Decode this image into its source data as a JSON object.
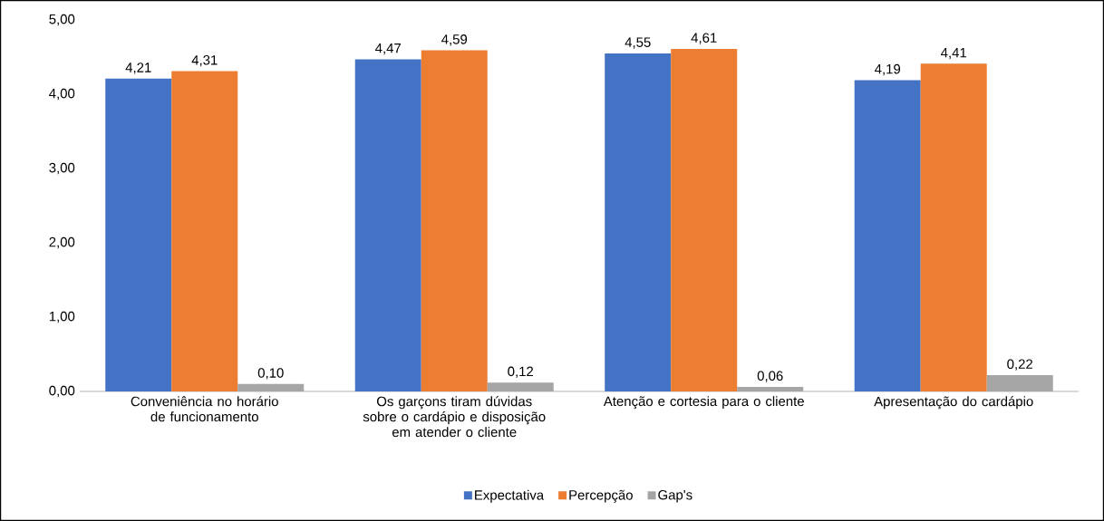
{
  "chart_data": {
    "type": "bar",
    "categories": [
      "Conveniência no horário de funcionamento",
      "Os garçons tiram dúvidas sobre o cardápio e disposição em atender o cliente",
      "Atenção e cortesia para o cliente",
      "Apresentação do cardápio"
    ],
    "series": [
      {
        "name": "Expectativa",
        "color": "#4472c4",
        "values": [
          4.21,
          4.47,
          4.55,
          4.19
        ],
        "value_labels": [
          "4,21",
          "4,47",
          "4,55",
          "4,19"
        ]
      },
      {
        "name": "Percepção",
        "color": "#ed7d31",
        "values": [
          4.31,
          4.59,
          4.61,
          4.41
        ],
        "value_labels": [
          "4,31",
          "4,59",
          "4,61",
          "4,41"
        ]
      },
      {
        "name": "Gap's",
        "color": "#a5a5a5",
        "values": [
          0.1,
          0.12,
          0.06,
          0.22
        ],
        "value_labels": [
          "0,10",
          "0,12",
          "0,06",
          "0,22"
        ]
      }
    ],
    "ylim": [
      0,
      5
    ],
    "yticks": [
      {
        "value": 0,
        "label": "0,00"
      },
      {
        "value": 1,
        "label": "1,00"
      },
      {
        "value": 2,
        "label": "2,00"
      },
      {
        "value": 3,
        "label": "3,00"
      },
      {
        "value": 4,
        "label": "4,00"
      },
      {
        "value": 5,
        "label": "5,00"
      }
    ],
    "legend": "bottom"
  }
}
